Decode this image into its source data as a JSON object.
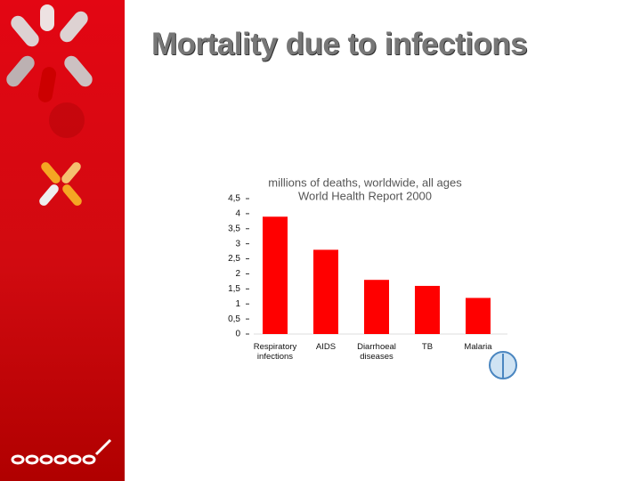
{
  "title": "Mortality due to infections",
  "chart_data": {
    "type": "bar",
    "title": "millions of deaths, worldwide, all ages",
    "subtitle": "World Health Report 2000",
    "categories": [
      "Respiratory infections",
      "AIDS",
      "Diarrhoeal diseases",
      "TB",
      "Malaria"
    ],
    "values": [
      3.9,
      2.8,
      1.8,
      1.6,
      1.2
    ],
    "color": "#ff0000",
    "ylim": [
      0,
      4.5
    ],
    "yticks": [
      0,
      {
        "value": 0.5,
        "label": "0,5"
      },
      1,
      {
        "value": 1.5,
        "label": "1,5"
      },
      2,
      {
        "value": 2.5,
        "label": "2,5"
      },
      3,
      {
        "value": 3.5,
        "label": "3,5"
      },
      4,
      {
        "value": 4.5,
        "label": "4,5"
      }
    ],
    "grid": false
  }
}
